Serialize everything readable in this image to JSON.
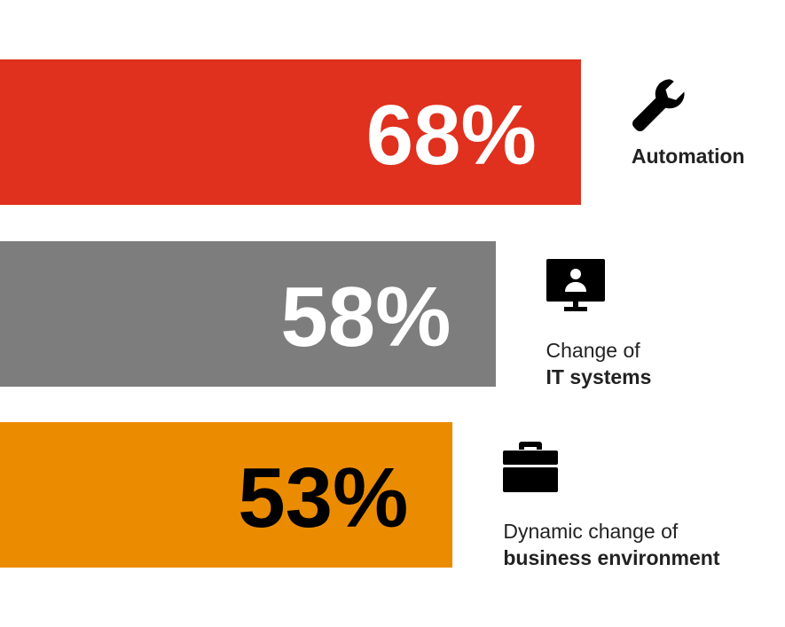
{
  "chart_data": {
    "type": "bar",
    "orientation": "horizontal",
    "xlim": [
      0,
      100
    ],
    "categories": [
      "Automation",
      "Change of IT systems",
      "Dynamic change of business environment"
    ],
    "values": [
      68,
      58,
      53
    ],
    "value_labels": [
      "68%",
      "58%",
      "53%"
    ],
    "bar_colors": [
      "#e0301e",
      "#7d7d7d",
      "#eb8c00"
    ],
    "value_label_colors": [
      "#ffffff",
      "#ffffff",
      "#000000"
    ],
    "icons": [
      "wrench-icon",
      "monitor-user-icon",
      "briefcase-icon"
    ],
    "label_lines": [
      [
        {
          "text": "Automation",
          "bold": true
        }
      ],
      [
        {
          "text": "Change of",
          "bold": false
        },
        {
          "text": "IT systems",
          "bold": true
        }
      ],
      [
        {
          "text": "Dynamic change of",
          "bold": false
        },
        {
          "text": "business environment",
          "bold": true
        }
      ]
    ],
    "grid": false,
    "legend": "none"
  }
}
